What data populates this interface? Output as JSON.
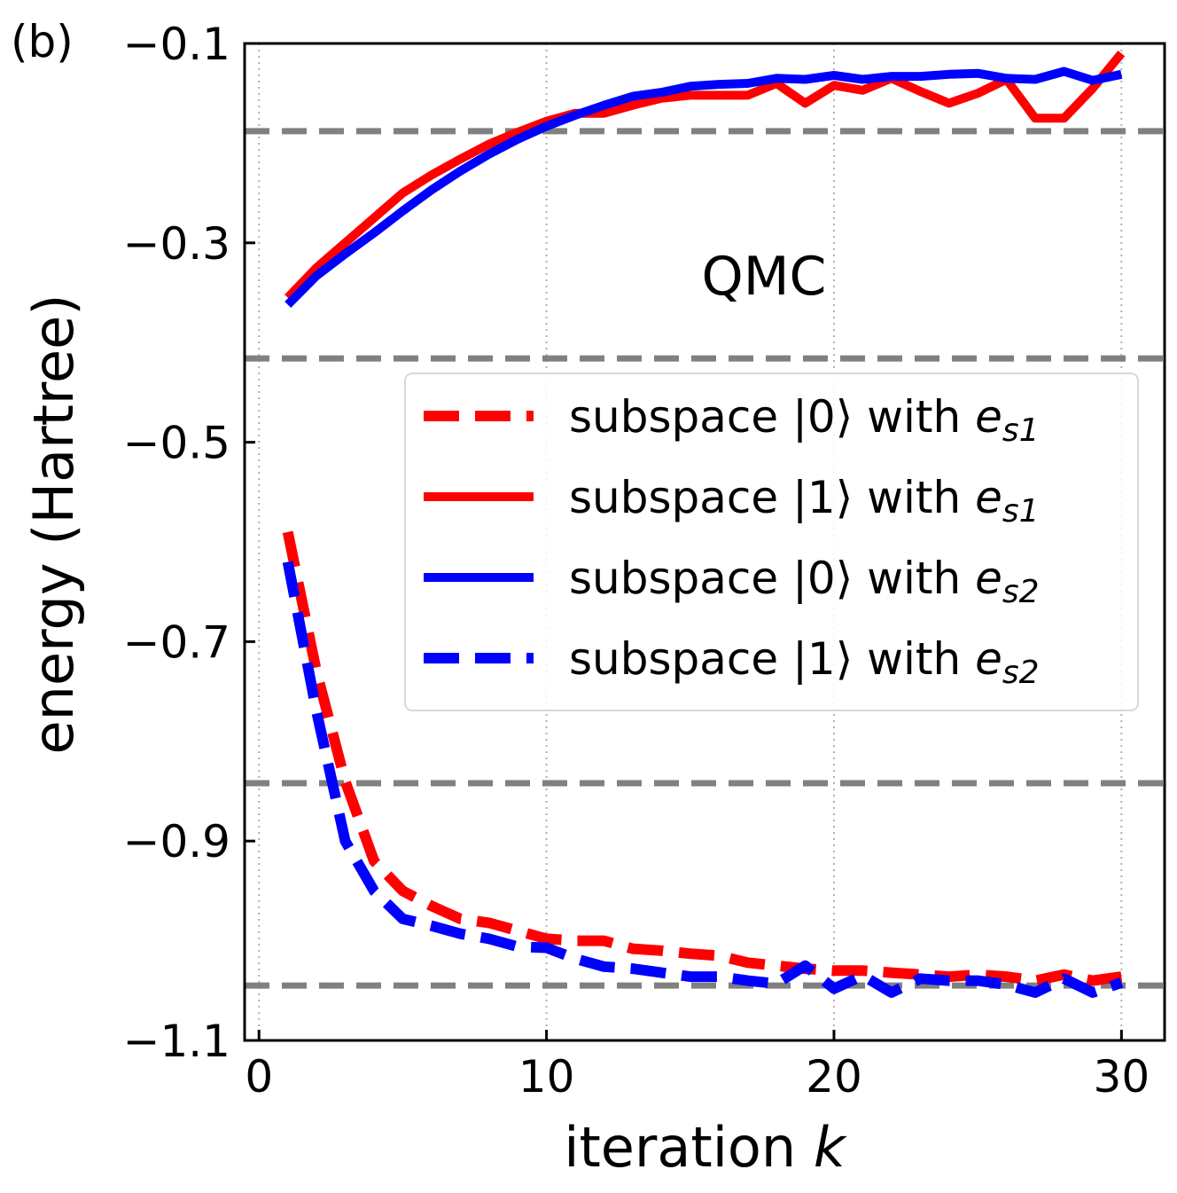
{
  "chart_data": {
    "type": "line",
    "panel_label": "(b)",
    "annotation": "QMC",
    "xlabel_text": "iteration ",
    "xlabel_var": "k",
    "ylabel": "energy (Hartree)",
    "xlim": [
      -0.5,
      31.5
    ],
    "ylim": [
      -1.1,
      -0.1
    ],
    "xticks": [
      0,
      10,
      20,
      30
    ],
    "xtick_labels": [
      "0",
      "10",
      "20",
      "30"
    ],
    "yticks": [
      -0.1,
      -0.3,
      -0.5,
      -0.7,
      -0.9,
      -1.1
    ],
    "ytick_labels": [
      "−0.1",
      "−0.3",
      "−0.5",
      "−0.7",
      "−0.9",
      "−1.1"
    ],
    "vertical_grid": true,
    "reference_lines": [
      -0.188,
      -0.416,
      -0.842,
      -1.045
    ],
    "reference_color": "#808080",
    "legend_position": "center-right",
    "legend": [
      {
        "prefix": "subspace ",
        "ket": "|0⟩",
        "mid": " with ",
        "e": "e",
        "sub": "s1"
      },
      {
        "prefix": "subspace ",
        "ket": "|1⟩",
        "mid": " with ",
        "e": "e",
        "sub": "s1"
      },
      {
        "prefix": "subspace ",
        "ket": "|0⟩",
        "mid": " with ",
        "e": "e",
        "sub": "s2"
      },
      {
        "prefix": "subspace ",
        "ket": "|1⟩",
        "mid": " with ",
        "e": "e",
        "sub": "s2"
      }
    ],
    "x": [
      1,
      2,
      3,
      4,
      5,
      6,
      7,
      8,
      9,
      10,
      11,
      12,
      13,
      14,
      15,
      16,
      17,
      18,
      19,
      20,
      21,
      22,
      23,
      24,
      25,
      26,
      27,
      28,
      29,
      30
    ],
    "series": [
      {
        "name": "subspace |0⟩ with e_s1",
        "color": "#ff0000",
        "dash": true,
        "values": [
          -0.59,
          -0.73,
          -0.84,
          -0.92,
          -0.95,
          -0.965,
          -0.978,
          -0.982,
          -0.99,
          -0.998,
          -1.0,
          -1.0,
          -1.008,
          -1.01,
          -1.013,
          -1.015,
          -1.022,
          -1.025,
          -1.028,
          -1.03,
          -1.03,
          -1.032,
          -1.034,
          -1.036,
          -1.034,
          -1.036,
          -1.04,
          -1.034,
          -1.04,
          -1.036
        ]
      },
      {
        "name": "subspace |1⟩ with e_s1",
        "color": "#ff0000",
        "dash": false,
        "values": [
          -0.355,
          -0.325,
          -0.3,
          -0.275,
          -0.25,
          -0.232,
          -0.216,
          -0.201,
          -0.189,
          -0.178,
          -0.17,
          -0.17,
          -0.162,
          -0.155,
          -0.152,
          -0.152,
          -0.152,
          -0.14,
          -0.16,
          -0.142,
          -0.147,
          -0.135,
          -0.148,
          -0.16,
          -0.15,
          -0.136,
          -0.175,
          -0.175,
          -0.145,
          -0.11
        ]
      },
      {
        "name": "subspace |0⟩ with e_s2",
        "color": "#0000ff",
        "dash": false,
        "values": [
          -0.362,
          -0.333,
          -0.311,
          -0.29,
          -0.268,
          -0.247,
          -0.228,
          -0.211,
          -0.196,
          -0.183,
          -0.172,
          -0.162,
          -0.153,
          -0.149,
          -0.143,
          -0.141,
          -0.14,
          -0.135,
          -0.136,
          -0.132,
          -0.136,
          -0.133,
          -0.133,
          -0.131,
          -0.13,
          -0.135,
          -0.136,
          -0.128,
          -0.137,
          -0.131
        ]
      },
      {
        "name": "subspace |1⟩ with e_s2",
        "color": "#0000ff",
        "dash": true,
        "values": [
          -0.62,
          -0.77,
          -0.9,
          -0.95,
          -0.978,
          -0.985,
          -0.993,
          -0.998,
          -1.006,
          -1.007,
          -1.018,
          -1.026,
          -1.028,
          -1.032,
          -1.036,
          -1.036,
          -1.04,
          -1.043,
          -1.025,
          -1.048,
          -1.035,
          -1.052,
          -1.038,
          -1.04,
          -1.04,
          -1.044,
          -1.052,
          -1.038,
          -1.052,
          -1.042
        ]
      }
    ]
  }
}
